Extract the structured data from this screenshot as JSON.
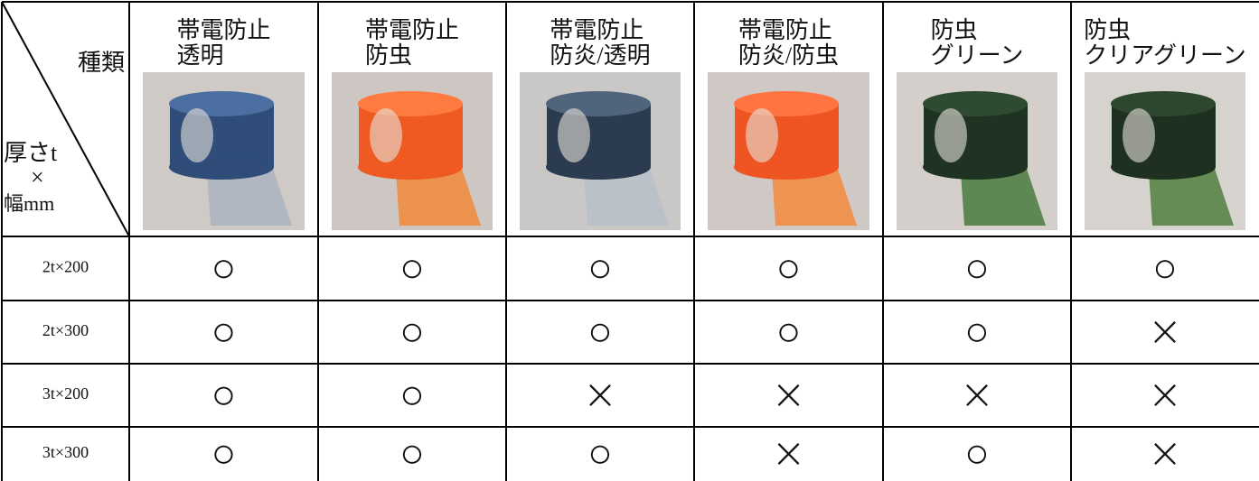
{
  "table": {
    "corner": {
      "top": "種類",
      "lines": [
        "厚さt",
        "×",
        "幅mm"
      ]
    },
    "columns": [
      [
        "帯電防止",
        "透明"
      ],
      [
        "帯電防止",
        "防虫"
      ],
      [
        "帯電防止",
        "防炎/透明"
      ],
      [
        "帯電防止",
        "防炎/防虫"
      ],
      [
        "防虫",
        "グリーン"
      ],
      [
        "防虫",
        "クリアグリーン"
      ]
    ],
    "rows": [
      {
        "label": "2t×200",
        "marks": [
          "○",
          "○",
          "○",
          "○",
          "○",
          "○"
        ]
      },
      {
        "label": "2t×300",
        "marks": [
          "○",
          "○",
          "○",
          "○",
          "○",
          "×"
        ]
      },
      {
        "label": "3t×200",
        "marks": [
          "○",
          "○",
          "×",
          "×",
          "×",
          "×"
        ]
      },
      {
        "label": "3t×300",
        "marks": [
          "○",
          "○",
          "○",
          "×",
          "○",
          "×"
        ]
      }
    ]
  }
}
